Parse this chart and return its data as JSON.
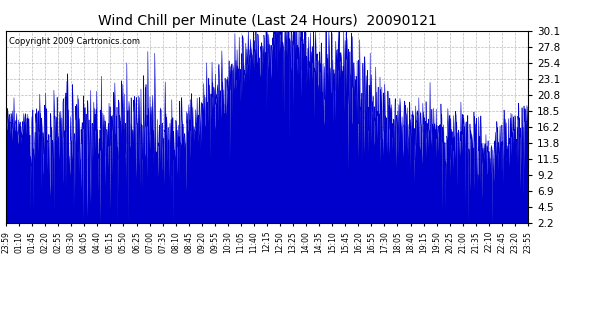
{
  "title": "Wind Chill per Minute (Last 24 Hours)  20090121",
  "copyright": "Copyright 2009 Cartronics.com",
  "yticks": [
    2.2,
    4.5,
    6.9,
    9.2,
    11.5,
    13.8,
    16.2,
    18.5,
    20.8,
    23.1,
    25.4,
    27.8,
    30.1
  ],
  "ymin": 2.2,
  "ymax": 30.1,
  "line_color": "#0000CC",
  "fill_color": "#0000CC",
  "background_color": "#ffffff",
  "grid_color": "#aaaaaa",
  "xtick_labels": [
    "23:59",
    "01:10",
    "01:45",
    "02:20",
    "02:55",
    "03:30",
    "04:05",
    "04:40",
    "05:15",
    "05:50",
    "06:25",
    "07:00",
    "07:35",
    "08:10",
    "08:45",
    "09:20",
    "09:55",
    "10:30",
    "11:05",
    "11:40",
    "12:15",
    "12:50",
    "13:25",
    "14:00",
    "14:35",
    "15:10",
    "15:45",
    "16:20",
    "16:55",
    "17:30",
    "18:05",
    "18:40",
    "19:15",
    "19:50",
    "20:25",
    "21:00",
    "21:35",
    "22:10",
    "22:45",
    "23:20",
    "23:55"
  ]
}
